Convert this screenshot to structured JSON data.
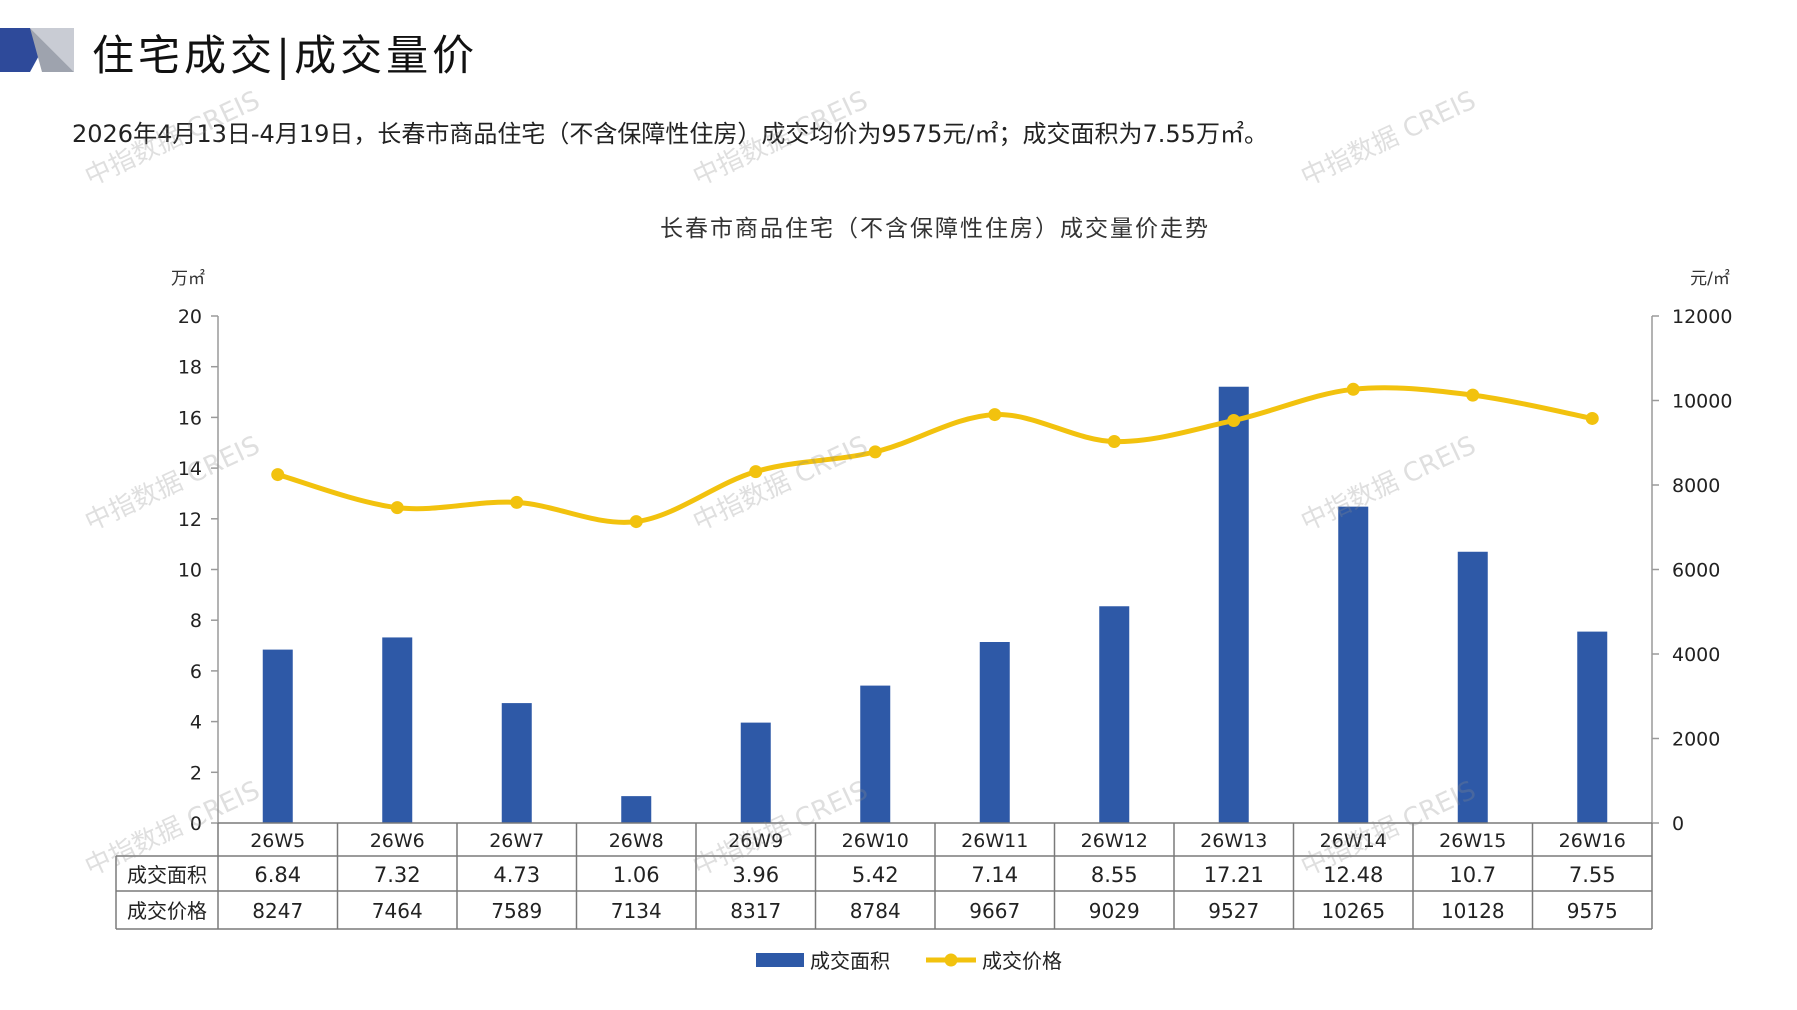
{
  "header": {
    "title": "住宅成交|成交量价",
    "subtitle": "2026年4月13日-4月19日，长春市商品住宅（不含保障性住房）成交均价为9575元/㎡；成交面积为7.55万㎡。"
  },
  "watermark": "中指数据 CREIS",
  "colors": {
    "bar": "#2E59A7",
    "line": "#F2C20E",
    "logo_dark": "#2E4A9A",
    "logo_light": "#B8BCC6"
  },
  "chart_data": {
    "type": "bar",
    "title": "长春市商品住宅（不含保障性住房）成交量价走势",
    "categories": [
      "26W5",
      "26W6",
      "26W7",
      "26W8",
      "26W9",
      "26W10",
      "26W11",
      "26W12",
      "26W13",
      "26W14",
      "26W15",
      "26W16"
    ],
    "series": [
      {
        "name": "成交面积",
        "type": "bar",
        "axis": "left",
        "values": [
          6.84,
          7.32,
          4.73,
          1.06,
          3.96,
          5.42,
          7.14,
          8.55,
          17.21,
          12.48,
          10.7,
          7.55
        ]
      },
      {
        "name": "成交价格",
        "type": "line",
        "axis": "right",
        "values": [
          8247,
          7464,
          7589,
          7134,
          8317,
          8784,
          9667,
          9029,
          9527,
          10265,
          10128,
          9575
        ]
      }
    ],
    "left_axis": {
      "unit": "万㎡",
      "ylim": [
        0,
        20
      ],
      "ticks": [
        0,
        2,
        4,
        6,
        8,
        10,
        12,
        14,
        16,
        18,
        20
      ]
    },
    "right_axis": {
      "unit": "元/㎡",
      "ylim": [
        0,
        12000
      ],
      "ticks": [
        0,
        2000,
        4000,
        6000,
        8000,
        10000,
        12000
      ]
    },
    "table": {
      "row_labels": [
        "成交面积",
        "成交价格"
      ],
      "area_text": [
        "6.84",
        "7.32",
        "4.73",
        "1.06",
        "3.96",
        "5.42",
        "7.14",
        "8.55",
        "17.21",
        "12.48",
        "10.7",
        "7.55"
      ],
      "price_text": [
        "8247",
        "7464",
        "7589",
        "7134",
        "8317",
        "8784",
        "9667",
        "9029",
        "9527",
        "10265",
        "10128",
        "9575"
      ]
    },
    "legend": "bottom",
    "grid": false
  }
}
